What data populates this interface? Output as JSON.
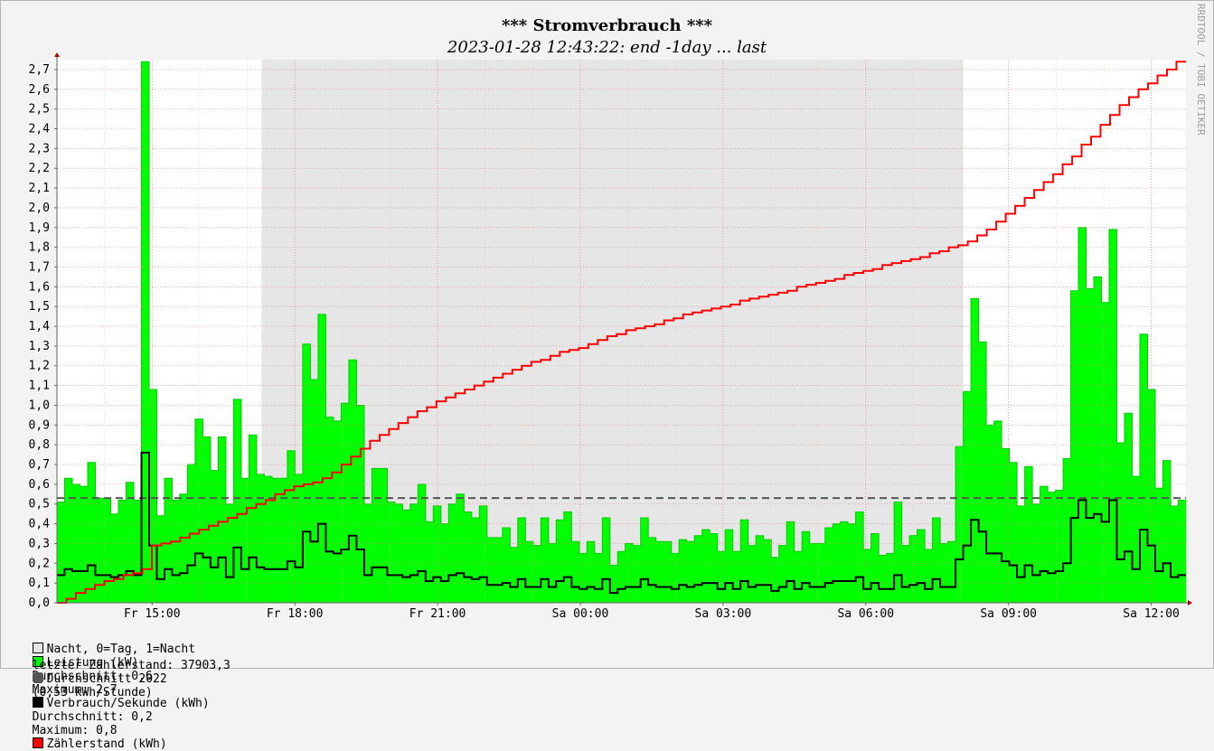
{
  "chart_data": {
    "type": "area",
    "title": "*** Stromverbrauch ***",
    "subtitle": "2023-01-28 12:43:22: end -1day ... last",
    "watermark": "RRDTOOL / TOBI OETIKER",
    "ylim": [
      0,
      2.75
    ],
    "yticks": [
      "0,0",
      "0,1",
      "0,2",
      "0,3",
      "0,4",
      "0,5",
      "0,6",
      "0,7",
      "0,8",
      "0,9",
      "1,0",
      "1,1",
      "1,2",
      "1,3",
      "1,4",
      "1,5",
      "1,6",
      "1,7",
      "1,8",
      "1,9",
      "2,0",
      "2,1",
      "2,2",
      "2,3",
      "2,4",
      "2,5",
      "2,6",
      "2,7"
    ],
    "x_hours_start": 13.0,
    "x_hours_end": 36.73,
    "xticks": [
      {
        "label": "Fr 15:00",
        "h": 15
      },
      {
        "label": "Fr 18:00",
        "h": 18
      },
      {
        "label": "Fr 21:00",
        "h": 21
      },
      {
        "label": "Sa 00:00",
        "h": 24
      },
      {
        "label": "Sa 03:00",
        "h": 27
      },
      {
        "label": "Sa 06:00",
        "h": 30
      },
      {
        "label": "Sa 09:00",
        "h": 33
      },
      {
        "label": "Sa 12:00",
        "h": 36
      }
    ],
    "night_start_h": 17.3,
    "night_end_h": 32.05,
    "average_2022": 0.53,
    "series": [
      {
        "name": "Leistung (kW)",
        "color": "#00ff00",
        "values": [
          0.51,
          0.63,
          0.6,
          0.59,
          0.71,
          0.53,
          0.53,
          0.45,
          0.52,
          0.61,
          0.52,
          2.74,
          1.08,
          0.44,
          0.63,
          0.52,
          0.55,
          0.7,
          0.93,
          0.84,
          0.67,
          0.84,
          0.5,
          1.03,
          0.63,
          0.85,
          0.65,
          0.64,
          0.63,
          0.63,
          0.77,
          0.65,
          1.31,
          1.13,
          1.46,
          0.94,
          0.92,
          1.01,
          1.23,
          1.0,
          0.5,
          0.68,
          0.68,
          0.51,
          0.5,
          0.47,
          0.5,
          0.6,
          0.41,
          0.49,
          0.4,
          0.5,
          0.55,
          0.46,
          0.43,
          0.49,
          0.33,
          0.33,
          0.38,
          0.28,
          0.43,
          0.31,
          0.29,
          0.43,
          0.3,
          0.42,
          0.46,
          0.31,
          0.25,
          0.31,
          0.25,
          0.43,
          0.19,
          0.26,
          0.3,
          0.29,
          0.43,
          0.33,
          0.31,
          0.31,
          0.25,
          0.32,
          0.31,
          0.34,
          0.37,
          0.35,
          0.26,
          0.37,
          0.26,
          0.42,
          0.29,
          0.34,
          0.32,
          0.23,
          0.29,
          0.41,
          0.26,
          0.36,
          0.3,
          0.3,
          0.38,
          0.4,
          0.41,
          0.4,
          0.46,
          0.27,
          0.35,
          0.24,
          0.25,
          0.51,
          0.29,
          0.34,
          0.37,
          0.27,
          0.43,
          0.3,
          0.31,
          0.79,
          1.07,
          1.54,
          1.32,
          0.9,
          0.92,
          0.78,
          0.71,
          0.49,
          0.69,
          0.5,
          0.59,
          0.56,
          0.57,
          0.73,
          1.58,
          1.9,
          1.59,
          1.65,
          1.52,
          1.89,
          0.81,
          0.96,
          0.64,
          1.36,
          1.08,
          0.58,
          0.72,
          0.49,
          0.52
        ]
      },
      {
        "name": "Verbrauch/Sekunde (kWh)",
        "color": "#000000",
        "values": [
          0.14,
          0.17,
          0.16,
          0.16,
          0.19,
          0.14,
          0.14,
          0.13,
          0.14,
          0.16,
          0.14,
          0.76,
          0.29,
          0.12,
          0.17,
          0.14,
          0.15,
          0.19,
          0.25,
          0.23,
          0.18,
          0.23,
          0.13,
          0.28,
          0.17,
          0.23,
          0.18,
          0.17,
          0.17,
          0.17,
          0.21,
          0.18,
          0.36,
          0.31,
          0.4,
          0.26,
          0.25,
          0.27,
          0.34,
          0.27,
          0.14,
          0.18,
          0.18,
          0.14,
          0.14,
          0.13,
          0.14,
          0.16,
          0.11,
          0.13,
          0.11,
          0.14,
          0.15,
          0.13,
          0.12,
          0.13,
          0.09,
          0.09,
          0.1,
          0.08,
          0.12,
          0.08,
          0.08,
          0.12,
          0.08,
          0.11,
          0.13,
          0.08,
          0.07,
          0.08,
          0.07,
          0.12,
          0.05,
          0.07,
          0.08,
          0.08,
          0.12,
          0.09,
          0.08,
          0.08,
          0.07,
          0.09,
          0.08,
          0.09,
          0.1,
          0.1,
          0.07,
          0.1,
          0.07,
          0.11,
          0.08,
          0.09,
          0.09,
          0.06,
          0.08,
          0.11,
          0.07,
          0.1,
          0.08,
          0.08,
          0.1,
          0.11,
          0.11,
          0.11,
          0.13,
          0.07,
          0.1,
          0.07,
          0.07,
          0.14,
          0.08,
          0.09,
          0.1,
          0.07,
          0.12,
          0.08,
          0.08,
          0.22,
          0.29,
          0.42,
          0.36,
          0.25,
          0.25,
          0.21,
          0.19,
          0.13,
          0.19,
          0.14,
          0.16,
          0.15,
          0.16,
          0.2,
          0.43,
          0.52,
          0.43,
          0.45,
          0.41,
          0.52,
          0.22,
          0.26,
          0.17,
          0.37,
          0.29,
          0.16,
          0.2,
          0.13,
          0.14
        ]
      },
      {
        "name": "Zählerstand (kWh)",
        "color": "#ff0000",
        "values": [
          0.0,
          0.02,
          0.05,
          0.07,
          0.09,
          0.11,
          0.12,
          0.14,
          0.15,
          0.17,
          0.29,
          0.3,
          0.31,
          0.33,
          0.35,
          0.37,
          0.39,
          0.41,
          0.43,
          0.45,
          0.48,
          0.5,
          0.52,
          0.55,
          0.57,
          0.59,
          0.6,
          0.61,
          0.63,
          0.66,
          0.7,
          0.74,
          0.78,
          0.82,
          0.85,
          0.88,
          0.91,
          0.94,
          0.97,
          0.99,
          1.02,
          1.04,
          1.06,
          1.08,
          1.1,
          1.12,
          1.14,
          1.16,
          1.18,
          1.2,
          1.22,
          1.23,
          1.25,
          1.27,
          1.28,
          1.29,
          1.31,
          1.33,
          1.35,
          1.36,
          1.38,
          1.39,
          1.4,
          1.41,
          1.43,
          1.44,
          1.46,
          1.47,
          1.48,
          1.49,
          1.5,
          1.51,
          1.53,
          1.54,
          1.55,
          1.56,
          1.57,
          1.58,
          1.6,
          1.61,
          1.62,
          1.63,
          1.64,
          1.66,
          1.67,
          1.68,
          1.69,
          1.71,
          1.72,
          1.73,
          1.74,
          1.75,
          1.77,
          1.78,
          1.8,
          1.81,
          1.83,
          1.86,
          1.89,
          1.93,
          1.97,
          2.01,
          2.05,
          2.09,
          2.13,
          2.17,
          2.22,
          2.26,
          2.32,
          2.36,
          2.42,
          2.47,
          2.52,
          2.56,
          2.6,
          2.63,
          2.67,
          2.7,
          2.74
        ]
      }
    ]
  },
  "legend": {
    "night": "Nacht, 0=Tag, 1=Nacht",
    "leistung": "Leistung (kW)",
    "leistung_avg": "Durchschnitt: 0,6",
    "leistung_max": "Maximum: 2,7",
    "verbrauch": "Verbrauch/Sekunde (kWh)",
    "verbrauch_avg": "Durchschnitt: 0,2",
    "verbrauch_max": "Maximum: 0,8",
    "zaehler": "Zählerstand (kWh)",
    "last_reading": "letzter Zählerstand: 37903,3",
    "avg_2022": "Durchschnitt 2022",
    "avg_2022_rate": "(0,53 kWh/Stunde)"
  },
  "colors": {
    "night": "#e6e6e6",
    "leistung": "#00ff00",
    "verbrauch": "#000000",
    "zaehler": "#ff0000",
    "avg_line": "#555555"
  }
}
